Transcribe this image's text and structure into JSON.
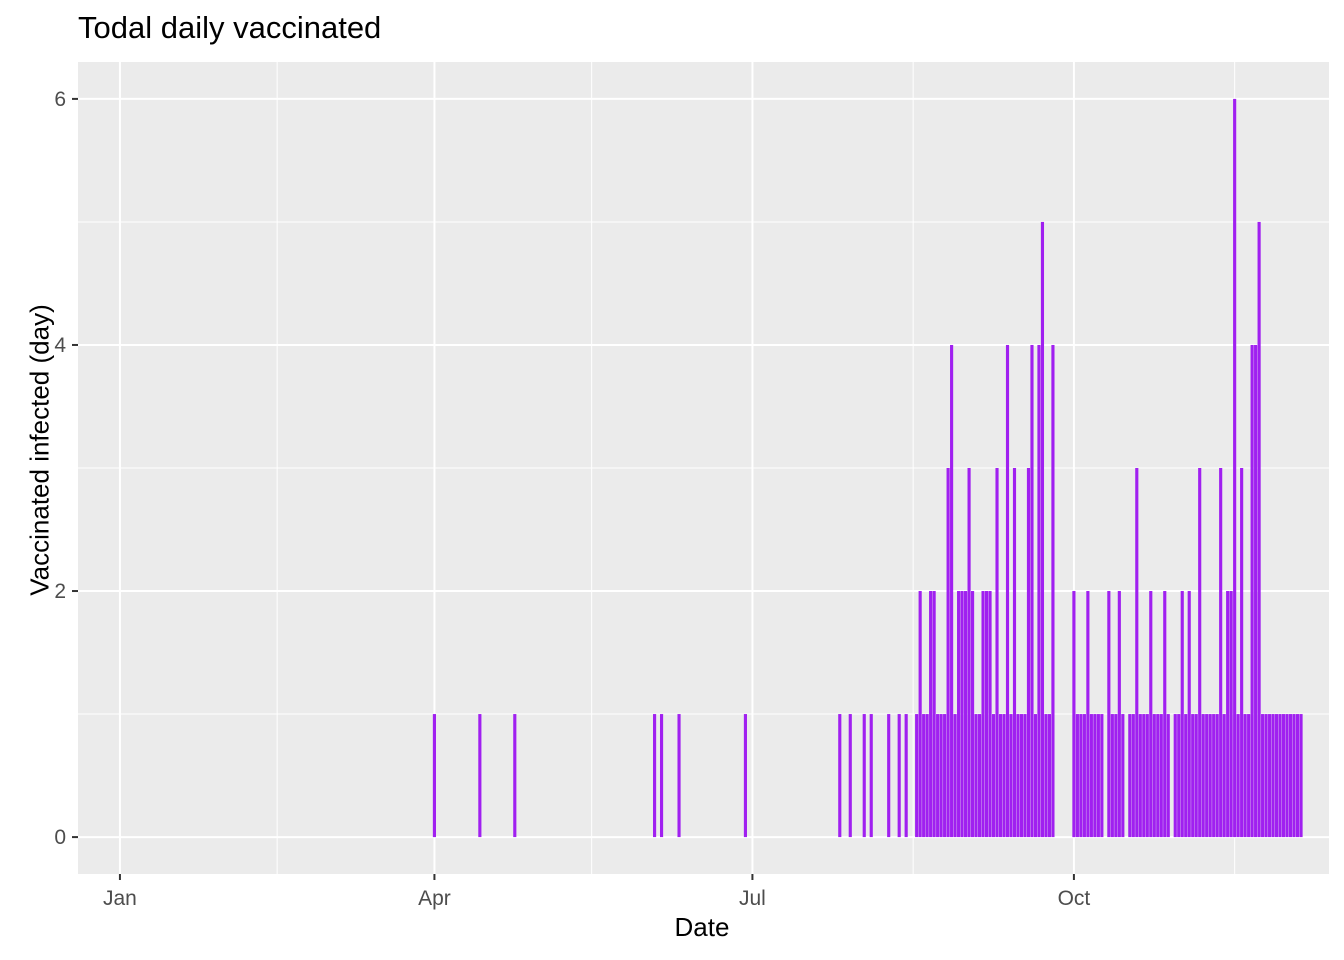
{
  "chart_data": {
    "type": "bar",
    "title": "Todal daily vaccinated",
    "xlabel": "Date",
    "ylabel": "Vaccinated infected (day)",
    "x_ticks": [
      {
        "label": "Jan",
        "date": "2021-01-01"
      },
      {
        "label": "Apr",
        "date": "2021-04-01"
      },
      {
        "label": "Jul",
        "date": "2021-07-01"
      },
      {
        "label": "Oct",
        "date": "2021-10-01"
      }
    ],
    "y_ticks": [
      0,
      2,
      4,
      6
    ],
    "ylim": [
      -0.3,
      6.3
    ],
    "xlim": [
      "2020-12-20",
      "2021-12-13"
    ],
    "grid": true,
    "bar_color": "#A020F0",
    "background_color": "#EBEBEB",
    "grid_color": "#FFFFFF",
    "dates": [
      "2021-04-01",
      "2021-04-14",
      "2021-04-24",
      "2021-06-03",
      "2021-06-05",
      "2021-06-10",
      "2021-06-29",
      "2021-07-26",
      "2021-07-29",
      "2021-08-02",
      "2021-08-04",
      "2021-08-09",
      "2021-08-12",
      "2021-08-14",
      "2021-08-17",
      "2021-08-18",
      "2021-08-19",
      "2021-08-20",
      "2021-08-21",
      "2021-08-22",
      "2021-08-23",
      "2021-08-24",
      "2021-08-25",
      "2021-08-26",
      "2021-08-27",
      "2021-08-28",
      "2021-08-29",
      "2021-08-30",
      "2021-08-31",
      "2021-09-01",
      "2021-09-02",
      "2021-09-03",
      "2021-09-04",
      "2021-09-05",
      "2021-09-06",
      "2021-09-07",
      "2021-09-08",
      "2021-09-09",
      "2021-09-10",
      "2021-09-11",
      "2021-09-12",
      "2021-09-13",
      "2021-09-14",
      "2021-09-15",
      "2021-09-16",
      "2021-09-17",
      "2021-09-18",
      "2021-09-19",
      "2021-09-20",
      "2021-09-21",
      "2021-09-22",
      "2021-09-23",
      "2021-09-24",
      "2021-09-25",
      "2021-10-01",
      "2021-10-02",
      "2021-10-03",
      "2021-10-04",
      "2021-10-05",
      "2021-10-06",
      "2021-10-07",
      "2021-10-08",
      "2021-10-09",
      "2021-10-11",
      "2021-10-12",
      "2021-10-13",
      "2021-10-14",
      "2021-10-15",
      "2021-10-17",
      "2021-10-18",
      "2021-10-19",
      "2021-10-20",
      "2021-10-21",
      "2021-10-22",
      "2021-10-23",
      "2021-10-24",
      "2021-10-25",
      "2021-10-26",
      "2021-10-27",
      "2021-10-28",
      "2021-10-30",
      "2021-10-31",
      "2021-11-01",
      "2021-11-02",
      "2021-11-03",
      "2021-11-04",
      "2021-11-05",
      "2021-11-06",
      "2021-11-07",
      "2021-11-08",
      "2021-11-09",
      "2021-11-10",
      "2021-11-11",
      "2021-11-12",
      "2021-11-13",
      "2021-11-14",
      "2021-11-15",
      "2021-11-16",
      "2021-11-17",
      "2021-11-18",
      "2021-11-19",
      "2021-11-20",
      "2021-11-21",
      "2021-11-22",
      "2021-11-23",
      "2021-11-24",
      "2021-11-25",
      "2021-11-26",
      "2021-11-27",
      "2021-11-28",
      "2021-11-29",
      "2021-11-30",
      "2021-12-01",
      "2021-12-02",
      "2021-12-03",
      "2021-12-04",
      "2021-12-05"
    ],
    "values": [
      1,
      1,
      1,
      1,
      1,
      1,
      1,
      1,
      1,
      1,
      1,
      1,
      1,
      1,
      1,
      2,
      1,
      1,
      2,
      2,
      1,
      1,
      1,
      3,
      4,
      1,
      2,
      2,
      2,
      3,
      2,
      1,
      1,
      2,
      2,
      2,
      1,
      3,
      1,
      1,
      4,
      1,
      3,
      1,
      1,
      1,
      3,
      4,
      1,
      4,
      5,
      1,
      1,
      4,
      2,
      1,
      1,
      1,
      2,
      1,
      1,
      1,
      1,
      2,
      1,
      1,
      2,
      1,
      1,
      1,
      3,
      1,
      1,
      1,
      2,
      1,
      1,
      1,
      2,
      1,
      1,
      1,
      2,
      1,
      2,
      1,
      1,
      3,
      1,
      1,
      1,
      1,
      1,
      3,
      1,
      2,
      2,
      6,
      1,
      3,
      1,
      1,
      4,
      4,
      5,
      1,
      1,
      1,
      1,
      1,
      1,
      1,
      1,
      1,
      1,
      1,
      1
    ]
  }
}
